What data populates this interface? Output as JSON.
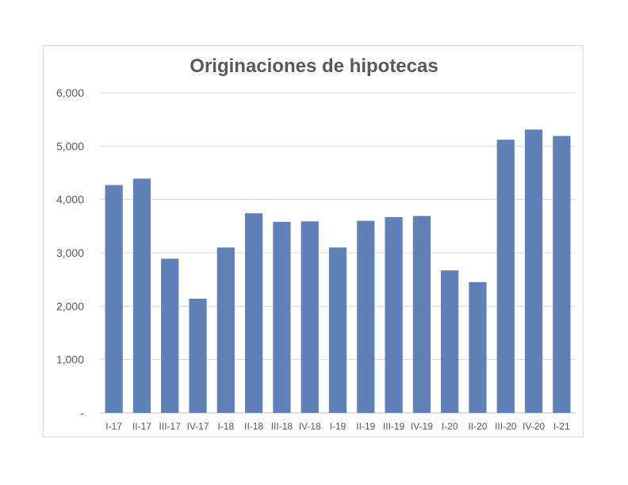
{
  "chart_data": {
    "type": "bar",
    "title": "Originaciones de hipotecas",
    "xlabel": "",
    "ylabel": "",
    "categories": [
      "I-17",
      "II-17",
      "III-17",
      "IV-17",
      "I-18",
      "II-18",
      "III-18",
      "IV-18",
      "I-19",
      "II-19",
      "III-19",
      "IV-19",
      "I-20",
      "II-20",
      "III-20",
      "IV-20",
      "I-21"
    ],
    "values": [
      4270,
      4390,
      2890,
      2140,
      3100,
      3740,
      3580,
      3590,
      3100,
      3600,
      3670,
      3690,
      2670,
      2450,
      5120,
      5310,
      5190
    ],
    "ylim": [
      0,
      6000
    ],
    "yticks": [
      0,
      1000,
      2000,
      3000,
      4000,
      5000,
      6000
    ],
    "ytick_labels": [
      "-",
      "1,000",
      "2,000",
      "3,000",
      "4,000",
      "5,000",
      "6,000"
    ],
    "bar_color": "#6080b8",
    "grid": true,
    "legend": "none"
  }
}
